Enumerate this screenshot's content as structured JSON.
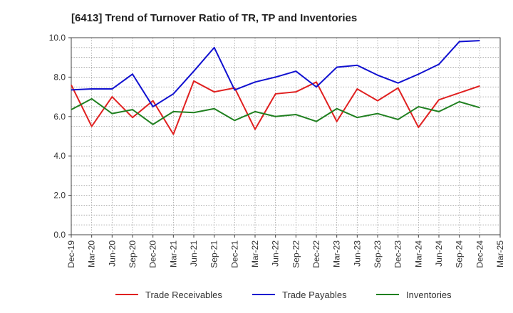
{
  "chart_data": {
    "type": "line",
    "title": "[6413]  Trend of Turnover Ratio of TR, TP and Inventories",
    "xlabel": "",
    "ylabel": "",
    "ylim": [
      0,
      10
    ],
    "y_ticks": [
      "0.0",
      "2.0",
      "4.0",
      "6.0",
      "8.0",
      "10.0"
    ],
    "grid": true,
    "legend_position": "bottom",
    "categories": [
      "Dec-19",
      "Mar-20",
      "Jun-20",
      "Sep-20",
      "Dec-20",
      "Mar-21",
      "Jun-21",
      "Sep-21",
      "Dec-21",
      "Mar-22",
      "Jun-22",
      "Sep-22",
      "Dec-22",
      "Mar-23",
      "Jun-23",
      "Sep-23",
      "Dec-23",
      "Mar-24",
      "Jun-24",
      "Sep-24",
      "Dec-24",
      "Mar-25"
    ],
    "series": [
      {
        "name": "Trade Receivables",
        "color": "#e02020",
        "values": [
          7.6,
          5.5,
          7.0,
          5.95,
          6.8,
          5.1,
          7.8,
          7.25,
          7.45,
          5.35,
          7.15,
          7.25,
          7.75,
          5.75,
          7.4,
          6.8,
          7.45,
          5.45,
          6.85,
          7.2,
          7.55,
          null
        ]
      },
      {
        "name": "Trade Payables",
        "color": "#1010d0",
        "values": [
          7.35,
          7.4,
          7.4,
          8.15,
          6.5,
          7.15,
          8.3,
          9.5,
          7.35,
          7.75,
          8.0,
          8.3,
          7.5,
          8.5,
          8.6,
          8.1,
          7.7,
          8.15,
          8.65,
          9.8,
          9.85,
          null
        ]
      },
      {
        "name": "Inventories",
        "color": "#208020",
        "values": [
          6.35,
          6.9,
          6.15,
          6.35,
          5.6,
          6.25,
          6.2,
          6.4,
          5.8,
          6.25,
          6.0,
          6.1,
          5.75,
          6.4,
          5.95,
          6.15,
          5.85,
          6.5,
          6.25,
          6.75,
          6.45,
          null
        ]
      }
    ]
  }
}
